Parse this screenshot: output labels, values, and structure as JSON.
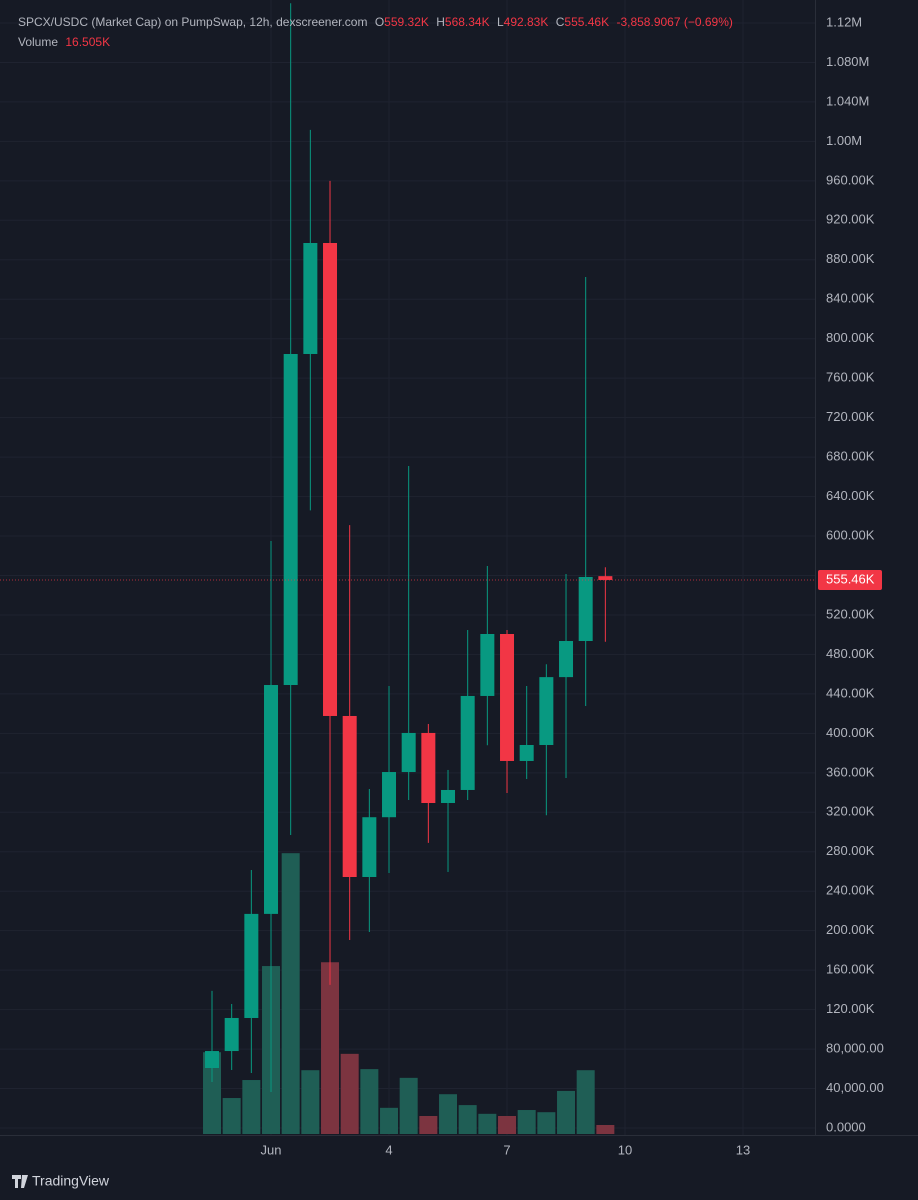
{
  "chart_data": {
    "type": "candlestick",
    "title": "SPCX/USDC (Market Cap) on PumpSwap, 12h, dexscreener.com",
    "ohlc_legend": {
      "keys": [
        "O",
        "H",
        "L",
        "C"
      ],
      "labels": [
        "559.32K",
        "568.34K",
        "492.83K",
        "555.46K"
      ]
    },
    "change_label": "-3,858.9067 (−0.69%)",
    "volume_label": "Volume",
    "volume_value_label": "16.505K",
    "last_label": "555.46K",
    "watermark": "TradingView",
    "up_color": "#089981",
    "down_color": "#f23645",
    "volume_up_color": "#1f5e55",
    "volume_down_color": "#7c3440",
    "grid": true,
    "x": [
      -0.5,
      0,
      0.5,
      1,
      1.5,
      2,
      2.5,
      3,
      3.5,
      4,
      4.5,
      5,
      5.5,
      6,
      6.5,
      7,
      7.5,
      8,
      8.5,
      9,
      9.5
    ],
    "open": [
      60800,
      78000,
      111500,
      217000,
      449000,
      784500,
      897000,
      417600,
      254400,
      315000,
      360800,
      400400,
      329400,
      342600,
      437900,
      500700,
      372000,
      388200,
      457000,
      493600,
      559320
    ],
    "high": [
      139000,
      125700,
      261500,
      595000,
      1140000,
      1011600,
      960000,
      611000,
      343600,
      448000,
      671000,
      409500,
      362900,
      504800,
      569600,
      504800,
      448000,
      470000,
      561500,
      862600,
      568340
    ],
    "low": [
      46600,
      58800,
      55700,
      36500,
      297000,
      626000,
      145000,
      190600,
      198700,
      258500,
      332500,
      289000,
      259500,
      332500,
      388000,
      339600,
      353700,
      317000,
      354800,
      427700,
      492830
    ],
    "close": [
      78000,
      111500,
      217000,
      449000,
      784500,
      897000,
      417600,
      254400,
      315000,
      360800,
      400400,
      329400,
      342600,
      437900,
      500700,
      372000,
      388200,
      457000,
      493600,
      558500,
      555460
    ],
    "volume": [
      150000,
      66000,
      99000,
      308000,
      515000,
      117000,
      315000,
      147000,
      119000,
      48000,
      103000,
      33000,
      73000,
      53000,
      37000,
      33000,
      44000,
      40000,
      79000,
      117000,
      16505
    ],
    "xlim": [
      -5.89,
      14.83
    ],
    "xticks": [
      {
        "value": 1,
        "label": "Jun"
      },
      4,
      7,
      10,
      13
    ],
    "ylim": [
      -7100,
      1143300
    ],
    "yticks": [
      {
        "value": 0,
        "label": "0.0000"
      },
      {
        "value": 40000,
        "label": "40,000.00"
      },
      {
        "value": 80000,
        "label": "80,000.00"
      },
      {
        "value": 120000,
        "label": "120.00K"
      },
      {
        "value": 160000,
        "label": "160.00K"
      },
      {
        "value": 200000,
        "label": "200.00K"
      },
      {
        "value": 240000,
        "label": "240.00K"
      },
      {
        "value": 280000,
        "label": "280.00K"
      },
      {
        "value": 320000,
        "label": "320.00K"
      },
      {
        "value": 360000,
        "label": "360.00K"
      },
      {
        "value": 400000,
        "label": "400.00K"
      },
      {
        "value": 440000,
        "label": "440.00K"
      },
      {
        "value": 480000,
        "label": "480.00K"
      },
      {
        "value": 520000,
        "label": "520.00K"
      },
      {
        "value": 560000,
        "label": "560.00K"
      },
      {
        "value": 600000,
        "label": "600.00K"
      },
      {
        "value": 640000,
        "label": "640.00K"
      },
      {
        "value": 680000,
        "label": "680.00K"
      },
      {
        "value": 720000,
        "label": "720.00K"
      },
      {
        "value": 760000,
        "label": "760.00K"
      },
      {
        "value": 800000,
        "label": "800.00K"
      },
      {
        "value": 840000,
        "label": "840.00K"
      },
      {
        "value": 880000,
        "label": "880.00K"
      },
      {
        "value": 920000,
        "label": "920.00K"
      },
      {
        "value": 960000,
        "label": "960.00K"
      },
      {
        "value": 1000000,
        "label": "1.00M"
      },
      {
        "value": 1040000,
        "label": "1.040M"
      },
      {
        "value": 1080000,
        "label": "1.080M"
      },
      {
        "value": 1120000,
        "label": "1.12M"
      }
    ]
  }
}
